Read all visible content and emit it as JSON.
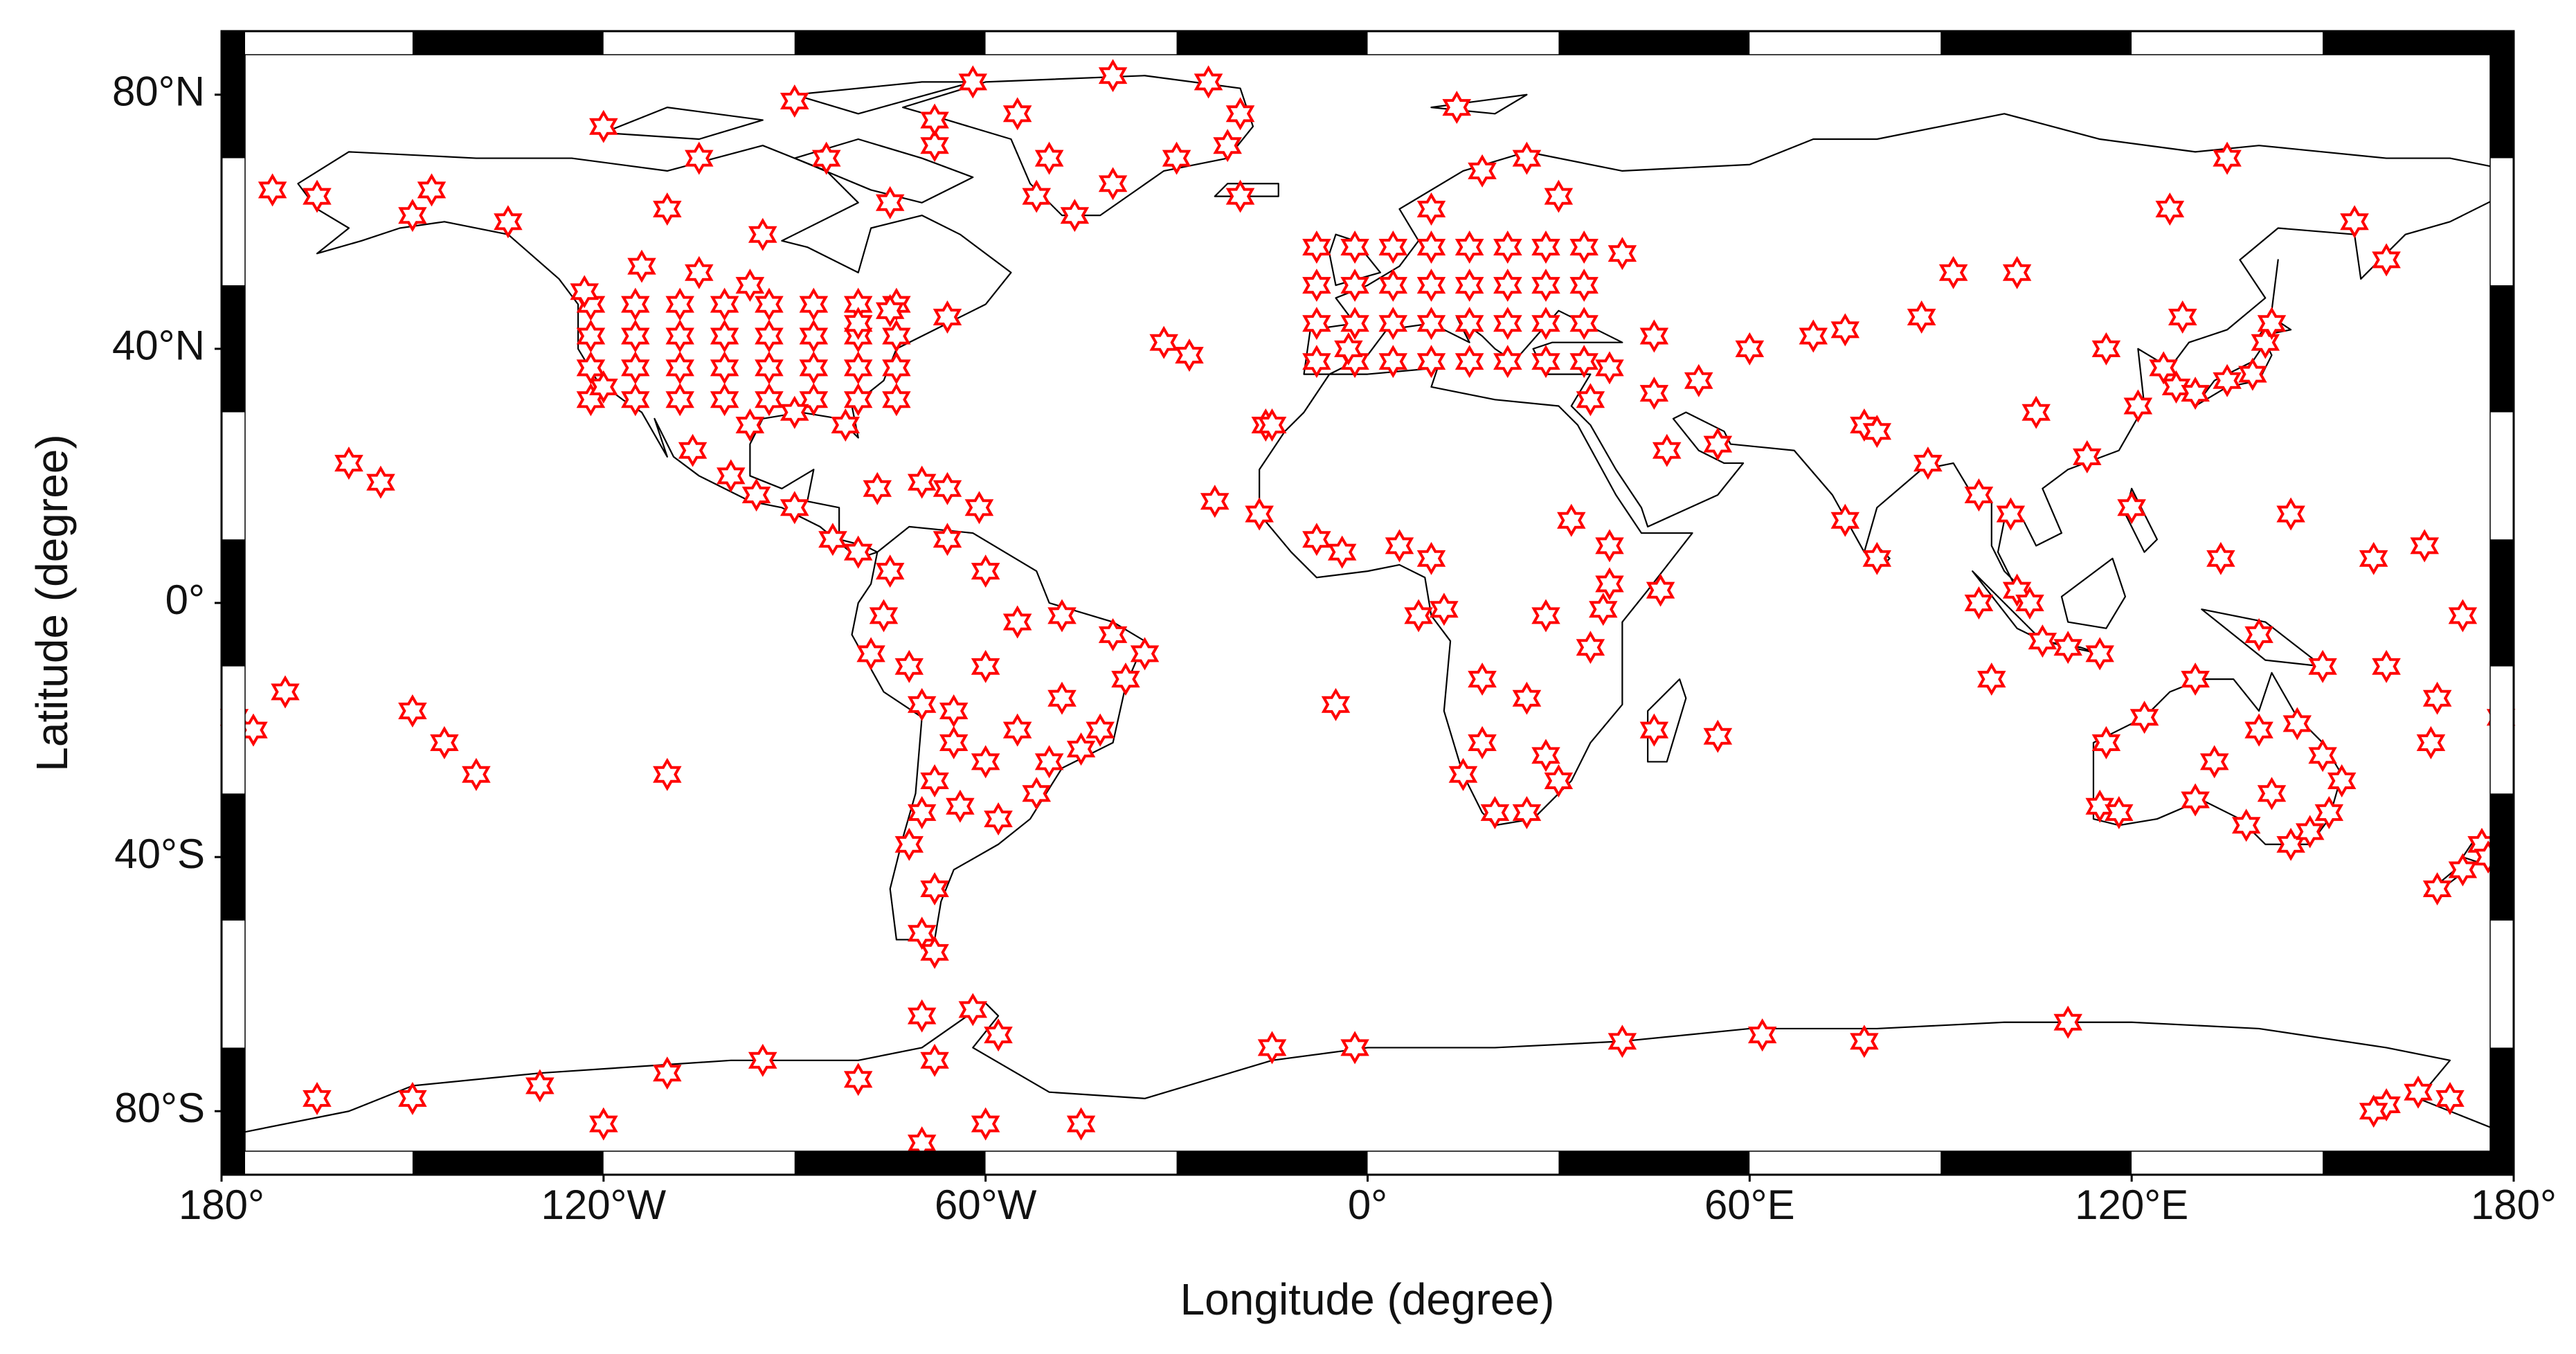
{
  "chart_data": {
    "type": "scatter",
    "x_label": "Longitude (degree)",
    "y_label": "Latitude (degree)",
    "xlim": [
      -180,
      180
    ],
    "ylim": [
      -90,
      90
    ],
    "xticks": [
      {
        "value": -180,
        "label": "180°"
      },
      {
        "value": -120,
        "label": "120°W"
      },
      {
        "value": -60,
        "label": "60°W"
      },
      {
        "value": 0,
        "label": "0°"
      },
      {
        "value": 60,
        "label": "60°E"
      },
      {
        "value": 120,
        "label": "120°E"
      },
      {
        "value": 180,
        "label": "180°"
      }
    ],
    "yticks": [
      {
        "value": 80,
        "label": "80°N"
      },
      {
        "value": 40,
        "label": "40°N"
      },
      {
        "value": 0,
        "label": "0°"
      },
      {
        "value": -40,
        "label": "40°S"
      },
      {
        "value": -80,
        "label": "80°S"
      }
    ],
    "color": "#ff0000",
    "x": [
      -122,
      -115,
      -108,
      -101,
      -94,
      -87,
      -80,
      -74,
      -122,
      -115,
      -108,
      -101,
      -94,
      -87,
      -80,
      -74,
      -122,
      -115,
      -108,
      -101,
      -94,
      -87,
      -80,
      -74,
      -122,
      -115,
      -108,
      -101,
      -94,
      -87,
      -80,
      -74,
      -120,
      -97,
      -82,
      -90,
      -123,
      -114,
      -105,
      -97,
      -80,
      -75,
      -66,
      -135,
      -150,
      -165,
      -147,
      -110,
      -95,
      -85,
      -75,
      -68,
      -105,
      -120,
      -90,
      -62,
      -52,
      -46,
      -40,
      -30,
      -22,
      -20,
      -25,
      -40,
      -55,
      -68,
      -50,
      -106,
      -100,
      -96,
      -90,
      -84,
      -80,
      -77,
      -70,
      -66,
      -61,
      -75,
      -76,
      -72,
      -78,
      -70,
      -65,
      -60,
      -55,
      -48,
      -40,
      -35,
      -38,
      -42,
      -45,
      -50,
      -48,
      -55,
      -60,
      -65,
      -68,
      -64,
      -58,
      -70,
      -72,
      -68,
      -70,
      -68,
      -52,
      -60,
      -66,
      -8,
      -2,
      4,
      10,
      16,
      22,
      28,
      34,
      -8,
      -2,
      4,
      10,
      16,
      22,
      28,
      34,
      -8,
      -2,
      4,
      10,
      16,
      22,
      28,
      34,
      -8,
      -2,
      4,
      10,
      16,
      22,
      28,
      34,
      -20,
      -16,
      10,
      18,
      25,
      30,
      40,
      45,
      38,
      14,
      -3,
      35,
      45,
      52,
      55,
      47,
      60,
      70,
      75,
      78,
      80,
      88,
      75,
      80,
      87,
      102,
      105,
      116,
      121,
      113,
      120,
      125,
      127,
      130,
      135,
      139,
      141,
      142,
      128,
      135,
      126,
      155,
      160,
      102,
      104,
      106,
      110,
      115,
      101,
      96,
      92,
      96,
      98,
      -17,
      -8,
      -4,
      5,
      10,
      8,
      12,
      18,
      25,
      28,
      35,
      38,
      37,
      32,
      38,
      45,
      55,
      46,
      20,
      25,
      30,
      28,
      18,
      15,
      -5,
      -15,
      -24,
      -28,
      -32,
      115,
      118,
      116,
      122,
      130,
      133,
      138,
      145,
      148,
      151,
      153,
      146,
      142,
      150,
      130,
      140,
      168,
      172,
      175,
      176,
      167,
      178,
      -178,
      -175,
      -170,
      -150,
      -145,
      -140,
      -155,
      -160,
      -110,
      -172,
      172,
      166,
      158,
      145,
      134,
      140,
      150,
      160,
      168,
      -70,
      -62,
      -58,
      -68,
      -80,
      -95,
      -110,
      -130,
      -150,
      -165,
      -120,
      -60,
      -70,
      -45,
      -15,
      -2,
      40,
      62,
      78,
      110,
      160,
      165,
      158,
      170
    ],
    "values": [
      47,
      47,
      47,
      47,
      47,
      47,
      47,
      47,
      42,
      42,
      42,
      42,
      42,
      42,
      42,
      42,
      37,
      37,
      37,
      37,
      37,
      37,
      37,
      37,
      32,
      32,
      32,
      32,
      32,
      32,
      32,
      32,
      34,
      28,
      28,
      30,
      49,
      53,
      52,
      50,
      44,
      46,
      45,
      60,
      61,
      64,
      65,
      62,
      58,
      70,
      63,
      72,
      70,
      75,
      79,
      82,
      64,
      61,
      66,
      70,
      72,
      77,
      82,
      83,
      77,
      76,
      70,
      24,
      20,
      17,
      15,
      10,
      8,
      18,
      19,
      18,
      15,
      5,
      -2,
      -10,
      -8,
      -16,
      -17,
      -10,
      -3,
      -2,
      -5,
      -8,
      -12,
      -20,
      -23,
      -25,
      -15,
      -20,
      -25,
      -22,
      -28,
      -32,
      -34,
      -33,
      -38,
      -45,
      -52,
      -55,
      -30,
      5,
      10,
      38,
      38,
      38,
      38,
      38,
      38,
      38,
      38,
      44,
      44,
      44,
      44,
      44,
      44,
      44,
      44,
      50,
      50,
      50,
      50,
      50,
      50,
      50,
      50,
      56,
      56,
      56,
      56,
      56,
      56,
      56,
      56,
      64,
      28,
      62,
      68,
      70,
      64,
      55,
      42,
      37,
      78,
      40,
      32,
      33,
      35,
      25,
      24,
      40,
      42,
      43,
      28,
      27,
      22,
      13,
      7,
      45,
      52,
      30,
      40,
      31,
      23,
      15,
      37,
      34,
      33,
      35,
      36,
      41,
      44,
      45,
      70,
      62,
      60,
      54,
      2,
      0,
      -6,
      -7,
      -8,
      14,
      17,
      52,
      0,
      -12,
      14,
      10,
      8,
      9,
      7,
      -2,
      -1,
      -12,
      -15,
      -2,
      -7,
      3,
      -1,
      13,
      9,
      -20,
      -21,
      2,
      -33,
      -33,
      -28,
      -24,
      -22,
      -27,
      -16,
      28,
      16,
      39,
      41,
      -32,
      -33,
      -22,
      -18,
      -12,
      -25,
      -35,
      -38,
      -36,
      -33,
      -28,
      -19,
      -30,
      -24,
      -31,
      -20,
      -45,
      -42,
      -38,
      -40,
      -22,
      -18,
      -18,
      -20,
      -14,
      -17,
      -22,
      -27,
      19,
      22,
      -27,
      65,
      -2,
      9,
      7,
      14,
      7,
      -5,
      -10,
      -10,
      -15,
      -65,
      -64,
      -68,
      -72,
      -75,
      -72,
      -74,
      -76,
      -78,
      -78,
      -82,
      -82,
      -85,
      -82,
      -70,
      -70,
      -69,
      -68,
      -69,
      -66,
      -79,
      -77,
      -80,
      -78
    ]
  }
}
